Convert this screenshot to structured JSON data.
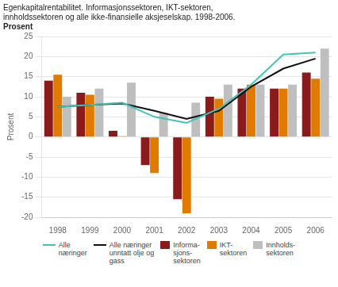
{
  "chart_data": {
    "type": "bar",
    "title": "Egenkapitalrentabilitet. Informasjonssektoren, IKT-sektoren,\ninnholdssektoren og alle ikke-finansielle aksjeselskap. 1998-2006.",
    "subtitle": "Prosent",
    "ylabel": "Prosent",
    "categories": [
      1998,
      1999,
      2000,
      2001,
      2002,
      2003,
      2004,
      2005,
      2006
    ],
    "series": [
      {
        "name": "Alle\nnæringer",
        "type": "line",
        "color": "#40C4BC",
        "values": [
          7.5,
          8.0,
          8.5,
          5.0,
          3.5,
          7.0,
          13.0,
          20.5,
          21.0
        ]
      },
      {
        "name": "Alle næringer\nunntatt olje og\ngass",
        "type": "line",
        "color": "#111111",
        "values": [
          7.5,
          8.0,
          8.3,
          6.5,
          4.5,
          6.5,
          12.5,
          17.0,
          19.5
        ]
      },
      {
        "name": "Informa-\nsjons-\nsektoren",
        "type": "bar",
        "color": "#8B1A1A",
        "values": [
          14.0,
          11.0,
          1.5,
          -7.0,
          -15.5,
          10.0,
          12.0,
          12.0,
          16.0
        ]
      },
      {
        "name": "IKT-\nsektoren",
        "type": "bar",
        "color": "#E07B00",
        "values": [
          15.5,
          10.5,
          0.2,
          -9.0,
          -19.0,
          9.5,
          13.0,
          12.0,
          14.5
        ]
      },
      {
        "name": "Innholds-\nsektoren",
        "type": "bar",
        "color": "#BFBFBF",
        "values": [
          10.0,
          12.0,
          13.5,
          6.0,
          8.5,
          13.0,
          13.0,
          13.0,
          22.0
        ]
      }
    ],
    "ylim": [
      -20,
      25
    ],
    "yticks": [
      -20,
      -15,
      -10,
      -5,
      0,
      5,
      10,
      15,
      20,
      25
    ],
    "grid": true,
    "legend": "bottom"
  }
}
